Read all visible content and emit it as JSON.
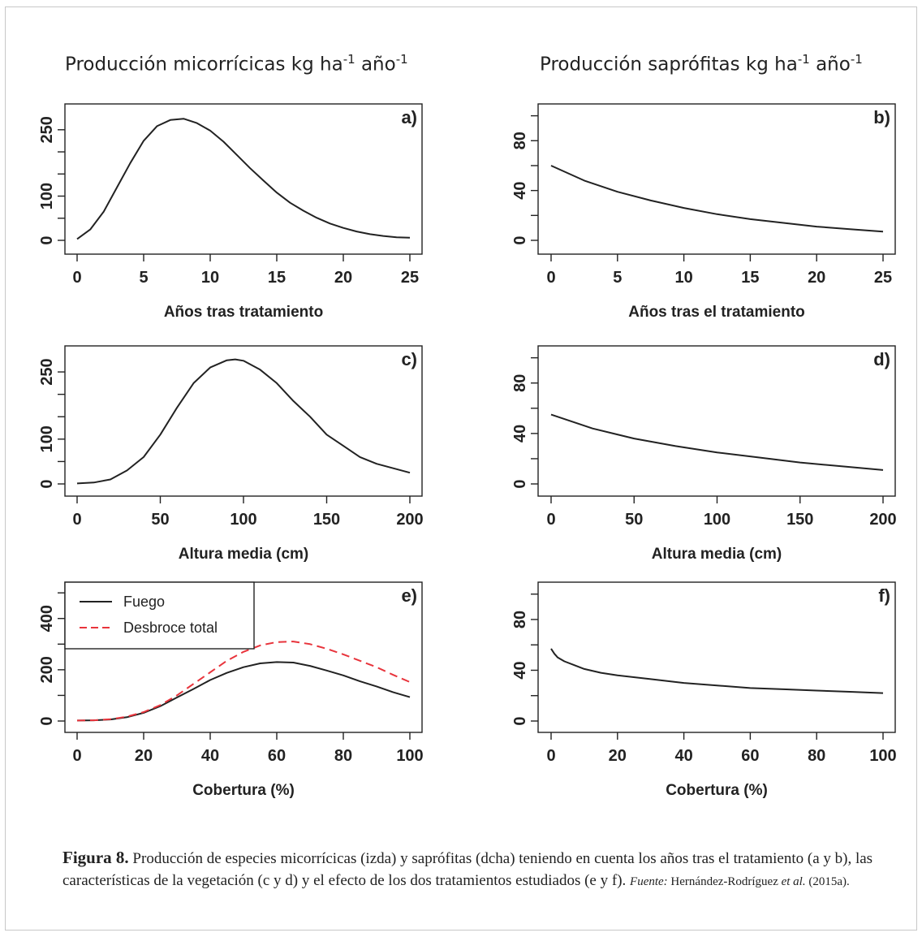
{
  "column_titles": {
    "left": {
      "text": "Producción micorrícicas kg ha",
      "sup1": "-1",
      "mid": " año",
      "sup2": "-1"
    },
    "right": {
      "text": "Producción saprófitas kg ha",
      "sup1": "-1",
      "mid": " año",
      "sup2": "-1"
    }
  },
  "caption": {
    "label": "Figura 8.",
    "text": " Producción de especies micorrícicas (izda) y saprófitas (dcha) teniendo en cuenta los años tras el tratamiento (a y b), las características de la vegetación (c y d) y el efecto de los dos tratamientos estudiados (e y f). ",
    "source_label": "Fuente:",
    "source_text": " Hernández-Rodríguez ",
    "source_etal": "et al.",
    "source_year": " (2015a)."
  },
  "chart_data": [
    {
      "id": "a",
      "panel_label": "a)",
      "type": "line",
      "xlabel": "Años tras tratamiento",
      "xlim": [
        0,
        25
      ],
      "ylim": [
        0,
        290
      ],
      "xticks": [
        0,
        5,
        10,
        15,
        20,
        25
      ],
      "yticks": [
        0,
        100,
        250
      ],
      "yticks_minor": [
        50,
        150,
        200
      ],
      "series": [
        {
          "color": "#222222",
          "dash": "",
          "x": [
            0,
            1,
            2,
            3,
            4,
            5,
            6,
            7,
            8,
            9,
            10,
            11,
            12,
            13,
            14,
            15,
            16,
            17,
            18,
            19,
            20,
            21,
            22,
            23,
            24,
            25
          ],
          "y": [
            3,
            25,
            65,
            120,
            175,
            225,
            258,
            272,
            275,
            265,
            248,
            223,
            193,
            163,
            135,
            108,
            85,
            67,
            51,
            38,
            28,
            20,
            14,
            10,
            7,
            6
          ]
        }
      ]
    },
    {
      "id": "b",
      "panel_label": "b)",
      "type": "line",
      "xlabel": "Años tras el tratamiento",
      "xlim": [
        0,
        25
      ],
      "ylim": [
        0,
        103
      ],
      "xticks": [
        0,
        5,
        10,
        15,
        20,
        25
      ],
      "yticks": [
        0,
        40,
        80
      ],
      "yticks_minor": [
        20,
        60,
        100
      ],
      "series": [
        {
          "color": "#222222",
          "dash": "",
          "x": [
            0,
            2.5,
            5,
            7.5,
            10,
            12.5,
            15,
            17.5,
            20,
            22.5,
            25
          ],
          "y": [
            60,
            48,
            39,
            32,
            26,
            21,
            17,
            14,
            11,
            9,
            7
          ]
        }
      ]
    },
    {
      "id": "c",
      "panel_label": "c)",
      "type": "line",
      "xlabel": "Altura media (cm)",
      "xlim": [
        0,
        200
      ],
      "ylim": [
        0,
        290
      ],
      "xticks": [
        0,
        50,
        100,
        150,
        200
      ],
      "yticks": [
        0,
        100,
        250
      ],
      "yticks_minor": [
        50,
        150,
        200
      ],
      "series": [
        {
          "color": "#222222",
          "dash": "",
          "x": [
            0,
            10,
            20,
            30,
            40,
            50,
            60,
            70,
            80,
            90,
            95,
            100,
            110,
            120,
            130,
            140,
            150,
            160,
            170,
            180,
            190,
            200
          ],
          "y": [
            1,
            3,
            10,
            30,
            60,
            110,
            170,
            225,
            260,
            276,
            278,
            275,
            255,
            225,
            185,
            150,
            110,
            85,
            60,
            45,
            35,
            25
          ]
        }
      ]
    },
    {
      "id": "d",
      "panel_label": "d)",
      "type": "line",
      "xlabel": "Altura media (cm)",
      "xlim": [
        0,
        200
      ],
      "ylim": [
        0,
        103
      ],
      "xticks": [
        0,
        50,
        100,
        150,
        200
      ],
      "yticks": [
        0,
        40,
        80
      ],
      "yticks_minor": [
        20,
        60,
        100
      ],
      "series": [
        {
          "color": "#222222",
          "dash": "",
          "x": [
            0,
            25,
            50,
            75,
            100,
            125,
            150,
            175,
            200
          ],
          "y": [
            55,
            44,
            36,
            30,
            25,
            21,
            17,
            14,
            11
          ]
        }
      ]
    },
    {
      "id": "e",
      "panel_label": "e)",
      "type": "line",
      "xlabel": "Cobertura (%)",
      "xlim": [
        0,
        100
      ],
      "ylim": [
        0,
        510
      ],
      "xticks": [
        0,
        20,
        40,
        60,
        80,
        100
      ],
      "yticks": [
        0,
        200,
        400
      ],
      "yticks_minor": [
        100,
        300,
        500
      ],
      "legend": {
        "position": "top-left"
      },
      "series": [
        {
          "name": "Fuego",
          "color": "#222222",
          "dash": "",
          "x": [
            0,
            5,
            10,
            15,
            20,
            25,
            30,
            35,
            40,
            45,
            50,
            55,
            60,
            65,
            70,
            75,
            80,
            85,
            90,
            95,
            100
          ],
          "y": [
            2,
            3,
            6,
            15,
            32,
            58,
            92,
            125,
            160,
            188,
            210,
            225,
            230,
            228,
            215,
            197,
            178,
            155,
            135,
            112,
            93
          ]
        },
        {
          "name": "Desbroce total",
          "color": "#e8343c",
          "dash": "10,6",
          "x": [
            0,
            5,
            10,
            15,
            20,
            25,
            30,
            35,
            40,
            45,
            50,
            55,
            60,
            65,
            70,
            75,
            80,
            85,
            90,
            95,
            100
          ],
          "y": [
            2,
            3,
            7,
            17,
            35,
            62,
            100,
            145,
            190,
            235,
            270,
            295,
            308,
            310,
            300,
            282,
            260,
            235,
            210,
            180,
            152
          ]
        }
      ]
    },
    {
      "id": "f",
      "panel_label": "f)",
      "type": "line",
      "xlabel": "Cobertura (%)",
      "xlim": [
        0,
        100
      ],
      "ylim": [
        0,
        103
      ],
      "xticks": [
        0,
        20,
        40,
        60,
        80,
        100
      ],
      "yticks": [
        0,
        40,
        80
      ],
      "yticks_minor": [
        20,
        60,
        100
      ],
      "series": [
        {
          "color": "#222222",
          "dash": "",
          "x": [
            0,
            1,
            2,
            4,
            7,
            10,
            15,
            20,
            30,
            40,
            50,
            60,
            70,
            80,
            90,
            100
          ],
          "y": [
            57,
            53,
            50,
            47,
            44,
            41,
            38,
            36,
            33,
            30,
            28,
            26,
            25,
            24,
            23,
            22
          ]
        }
      ]
    }
  ]
}
